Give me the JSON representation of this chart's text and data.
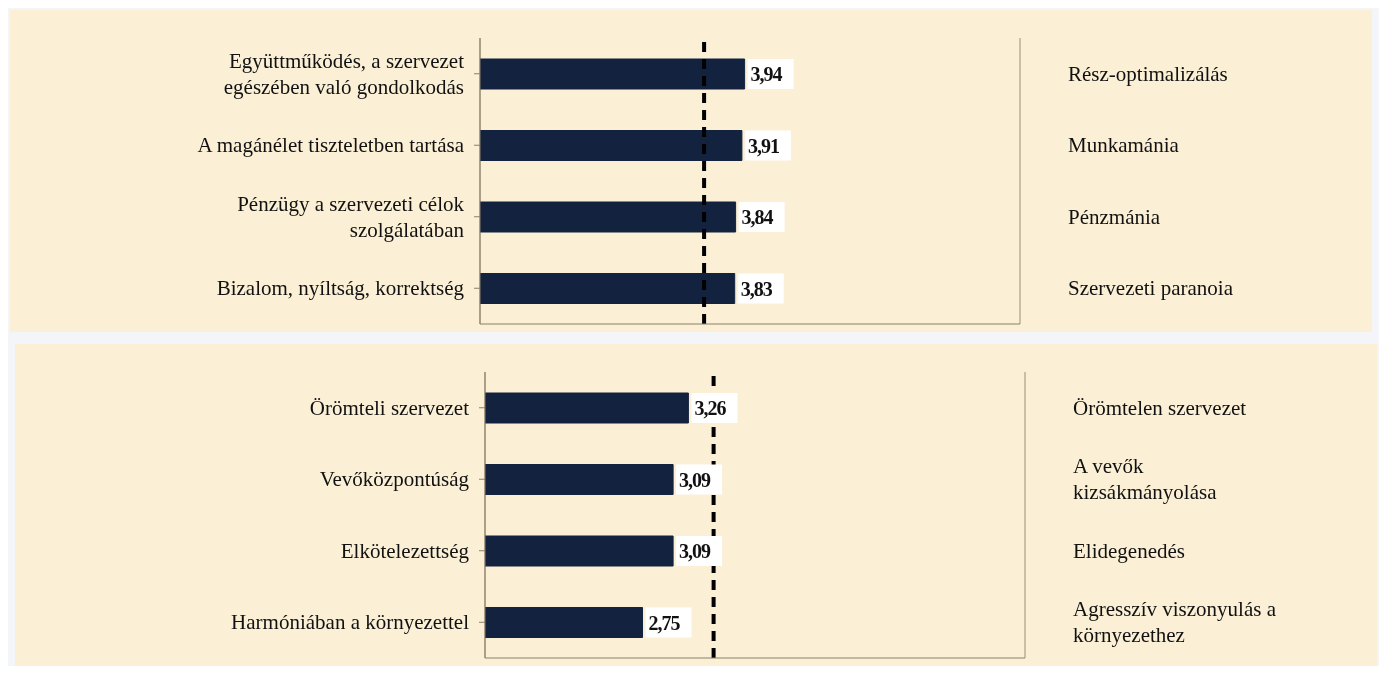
{
  "chart_data": [
    {
      "type": "bar",
      "orientation": "horizontal",
      "categories": [
        "Együttműködés, a szervezet\negészében való gondolkodás",
        "A magánélet tiszteletben tartása",
        "Pénzügy a szervezeti célok\nszolgálatában",
        "Bizalom, nyíltság, korrektség"
      ],
      "y2_categories": [
        "Rész-optimalizálás",
        "Munkamánia",
        "Pénzmánia",
        "Szervezeti paranoia"
      ],
      "values": [
        3.94,
        3.91,
        3.84,
        3.83
      ],
      "value_labels": [
        "3,94",
        "3,91",
        "3,84",
        "3,83"
      ],
      "color": "#13233f",
      "xlim": [
        1,
        7
      ],
      "tick_labels": false,
      "grid": "x",
      "ref_lines": [
        {
          "axis": "x",
          "value": 3.49,
          "color": "#000000",
          "line_style": "dashed"
        }
      ]
    },
    {
      "type": "bar",
      "orientation": "horizontal",
      "categories": [
        "Örömteli szervezet",
        "Vevőközpontúság",
        "Elkötelezettség",
        "Harmóniában a környezettel"
      ],
      "y2_categories": [
        "Örömtelen szervezet",
        "A vevők\nkizsákmányolása",
        "Elidegenedés",
        "Agresszív viszonyulás a\nkörnyezethez"
      ],
      "values": [
        3.26,
        3.09,
        3.09,
        2.75
      ],
      "value_labels": [
        "3,26",
        "3,09",
        "3,09",
        "2,75"
      ],
      "color": "#13233f",
      "xlim": [
        1,
        7
      ],
      "tick_labels": false,
      "grid": "x",
      "ref_lines": [
        {
          "axis": "x",
          "value": 3.54,
          "color": "#000000",
          "line_style": "dashed"
        }
      ]
    }
  ]
}
